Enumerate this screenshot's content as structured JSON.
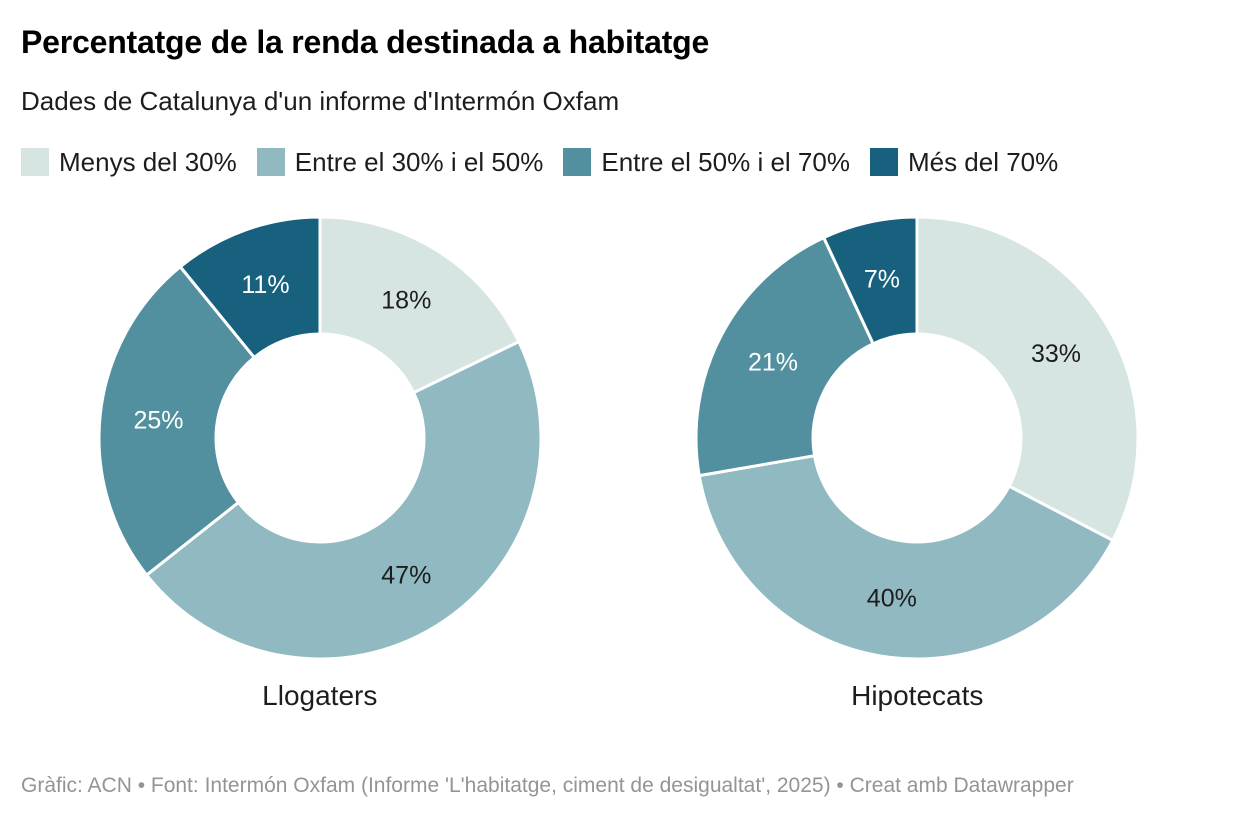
{
  "header": {
    "title": "Percentatge de la renda destinada a habitatge",
    "subtitle": "Dades de Catalunya d'un informe d'Intermón Oxfam"
  },
  "legend": {
    "items": [
      {
        "label": "Menys del 30%",
        "color": "#d6e5e2"
      },
      {
        "label": "Entre el 30% i el 50%",
        "color": "#90b9c1"
      },
      {
        "label": "Entre el 50% i el 70%",
        "color": "#53909f"
      },
      {
        "label": "Més del 70%",
        "color": "#17617e"
      }
    ]
  },
  "chart_data": {
    "type": "pie",
    "subtype": "donut",
    "title": "Percentatge de la renda destinada a habitatge",
    "subtitle": "Dades de Catalunya d'un informe d'Intermón Oxfam",
    "categories": [
      "Menys del 30%",
      "Entre el 30% i el 50%",
      "Entre el 50% i el 70%",
      "Més del 70%"
    ],
    "colors": [
      "#d6e5e2",
      "#90b9c1",
      "#53909f",
      "#17617e"
    ],
    "label_colors": [
      "#1d1d1d",
      "#1d1d1d",
      "#ffffff",
      "#ffffff"
    ],
    "charts": [
      {
        "title": "Llogaters",
        "values": [
          18,
          47,
          25,
          11
        ],
        "labels": [
          "18%",
          "47%",
          "25%",
          "11%"
        ]
      },
      {
        "title": "Hipotecats",
        "values": [
          33,
          40,
          21,
          7
        ],
        "labels": [
          "33%",
          "40%",
          "21%",
          "7%"
        ]
      }
    ],
    "start_angle_deg": 0,
    "direction": "clockwise",
    "donut_hole_ratio": 0.47,
    "legend_position": "top",
    "slice_separator_color": "#ffffff"
  },
  "footer": {
    "text": "Gràfic: ACN • Font: Intermón Oxfam (Informe 'L'habitatge, ciment de desigualtat', 2025) • Creat amb Datawrapper"
  }
}
